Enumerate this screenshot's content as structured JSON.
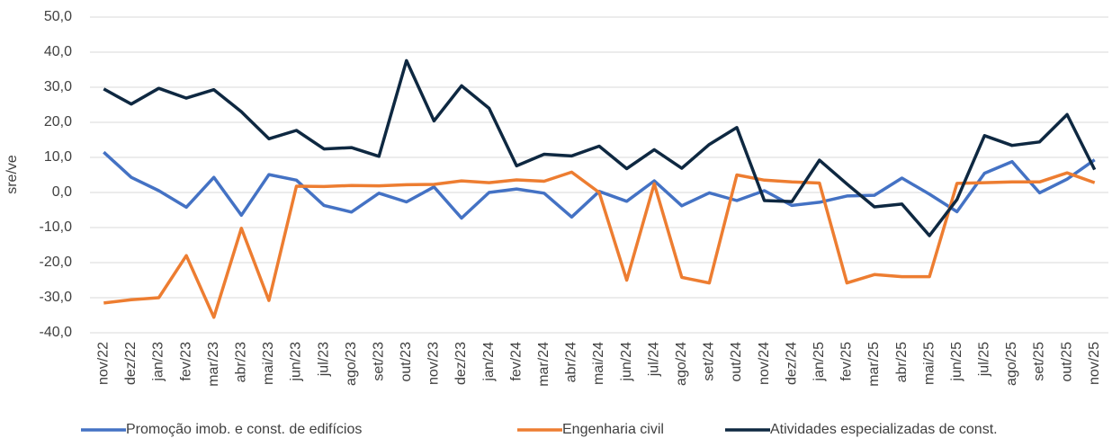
{
  "chart_data": {
    "type": "line",
    "y_label": "sre/ve",
    "categories": [
      "nov/22",
      "dez/22",
      "jan/23",
      "fev/23",
      "mar/23",
      "abr/23",
      "mai/23",
      "jun/23",
      "jul/23",
      "ago/23",
      "set/23",
      "out/23",
      "nov/23",
      "dez/23",
      "jan/24",
      "fev/24",
      "mar/24",
      "abr/24",
      "mai/24",
      "jun/24",
      "jul/24",
      "ago/24",
      "set/24",
      "out/24",
      "nov/24",
      "dez/24",
      "jan/25",
      "fev/25",
      "mar/25",
      "abr/25",
      "mai/25",
      "jun/25",
      "jul/25",
      "ago/25",
      "set/25",
      "out/25",
      "nov/25"
    ],
    "series": [
      {
        "name": "Promoção imob. e const. de edifícios",
        "color": "#4472c4",
        "values": [
          11.5,
          4.3,
          0.5,
          -4.2,
          4.3,
          -6.5,
          5.1,
          3.5,
          -3.7,
          -5.6,
          -0.2,
          -2.7,
          1.6,
          -7.3,
          0,
          1,
          -0.2,
          -7,
          0.3,
          -2.5,
          3.3,
          -3.8,
          -0.1,
          -2.3,
          0.5,
          -3.7,
          -2.8,
          -1,
          -0.8,
          4.1,
          -0.5,
          -5.5,
          5.5,
          8.8,
          -0.1,
          3.8,
          9.3
        ]
      },
      {
        "name": "Engenharia civil",
        "color": "#ed7d31",
        "values": [
          -31.5,
          -30.6,
          -30,
          -18,
          -35.6,
          -10.2,
          -30.8,
          1.8,
          1.7,
          2,
          1.9,
          2.2,
          2.3,
          3.3,
          2.8,
          3.6,
          3.2,
          5.8,
          0,
          -25,
          2.5,
          -24.2,
          -25.8,
          5,
          3.5,
          3,
          2.7,
          -25.8,
          -23.4,
          -24,
          -24,
          2.6,
          2.8,
          3,
          3,
          5.6,
          2.8
        ]
      },
      {
        "name": "Atividades especializadas de const.",
        "color": "#0e2841",
        "values": [
          29.5,
          25.2,
          29.7,
          26.9,
          29.3,
          23,
          15.3,
          17.7,
          12.4,
          12.8,
          10.3,
          37.6,
          20.4,
          30.4,
          24,
          7.6,
          10.9,
          10.4,
          13.2,
          6.8,
          12.2,
          6.9,
          13.7,
          18.5,
          -2.3,
          -2.6,
          9.2,
          2.4,
          -4.1,
          -3.3,
          -12.3,
          -2,
          16.2,
          13.4,
          14.4,
          22.2,
          6.5
        ]
      }
    ],
    "ylim": [
      -40,
      50
    ],
    "yticks": [
      {
        "value": -40,
        "label": "-40,0"
      },
      {
        "value": -30,
        "label": "-30,0"
      },
      {
        "value": -20,
        "label": "-20,0"
      },
      {
        "value": -10,
        "label": "-10,0"
      },
      {
        "value": 0,
        "label": "0,0"
      },
      {
        "value": 10,
        "label": "10,0"
      },
      {
        "value": 20,
        "label": "20,0"
      },
      {
        "value": 30,
        "label": "30,0"
      },
      {
        "value": 40,
        "label": "40,0"
      },
      {
        "value": 50,
        "label": "50,0"
      }
    ],
    "grid": true,
    "legend": "bottom"
  }
}
